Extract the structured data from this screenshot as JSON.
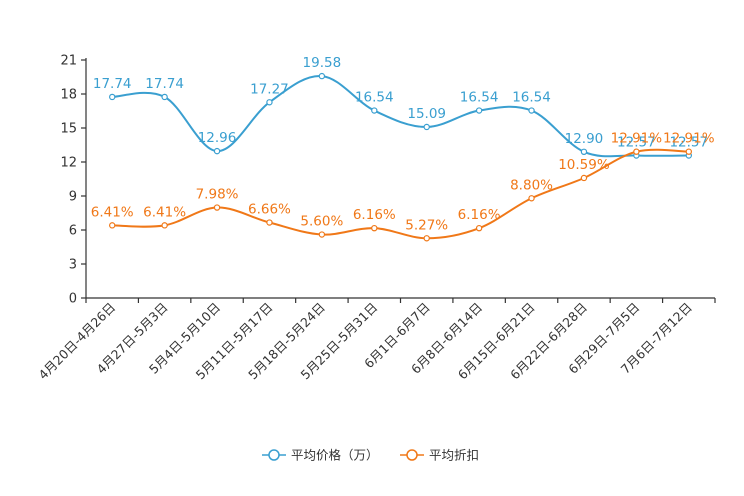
{
  "chart_data": {
    "type": "line",
    "title": "",
    "xlabel": "",
    "ylabel": "",
    "categories": [
      "4月20日-4月26日",
      "4月27日-5月3日",
      "5月4日-5月10日",
      "5月11日-5月17日",
      "5月18日-5月24日",
      "5月25日-5月31日",
      "6月1日-6月7日",
      "6月8日-6月14日",
      "6月15日-6月21日",
      "6月22日-6月28日",
      "6月29日-7月5日",
      "7月6日-7月12日"
    ],
    "ylim": [
      0,
      21
    ],
    "yticks": [
      0,
      3,
      6,
      9,
      12,
      15,
      18,
      21
    ],
    "legend_position": "bottom-center",
    "series": [
      {
        "name": "平均价格（万）",
        "color": "#3a9fd0",
        "values": [
          17.74,
          17.74,
          12.96,
          17.27,
          19.58,
          16.54,
          15.09,
          16.54,
          16.54,
          12.9,
          12.57,
          12.57
        ],
        "labels": [
          "17.74",
          "17.74",
          "12.96",
          "17.27",
          "19.58",
          "16.54",
          "15.09",
          "16.54",
          "16.54",
          "12.90",
          "12.57",
          "12.57"
        ]
      },
      {
        "name": "平均折扣",
        "color": "#f07818",
        "values": [
          6.41,
          6.41,
          7.98,
          6.66,
          5.6,
          6.16,
          5.27,
          6.16,
          8.8,
          10.59,
          12.91,
          12.91
        ],
        "labels": [
          "6.41%",
          "6.41%",
          "7.98%",
          "6.66%",
          "5.60%",
          "6.16%",
          "5.27%",
          "6.16%",
          "8.80%",
          "10.59%",
          "12.91%",
          "12.91%"
        ]
      }
    ]
  }
}
